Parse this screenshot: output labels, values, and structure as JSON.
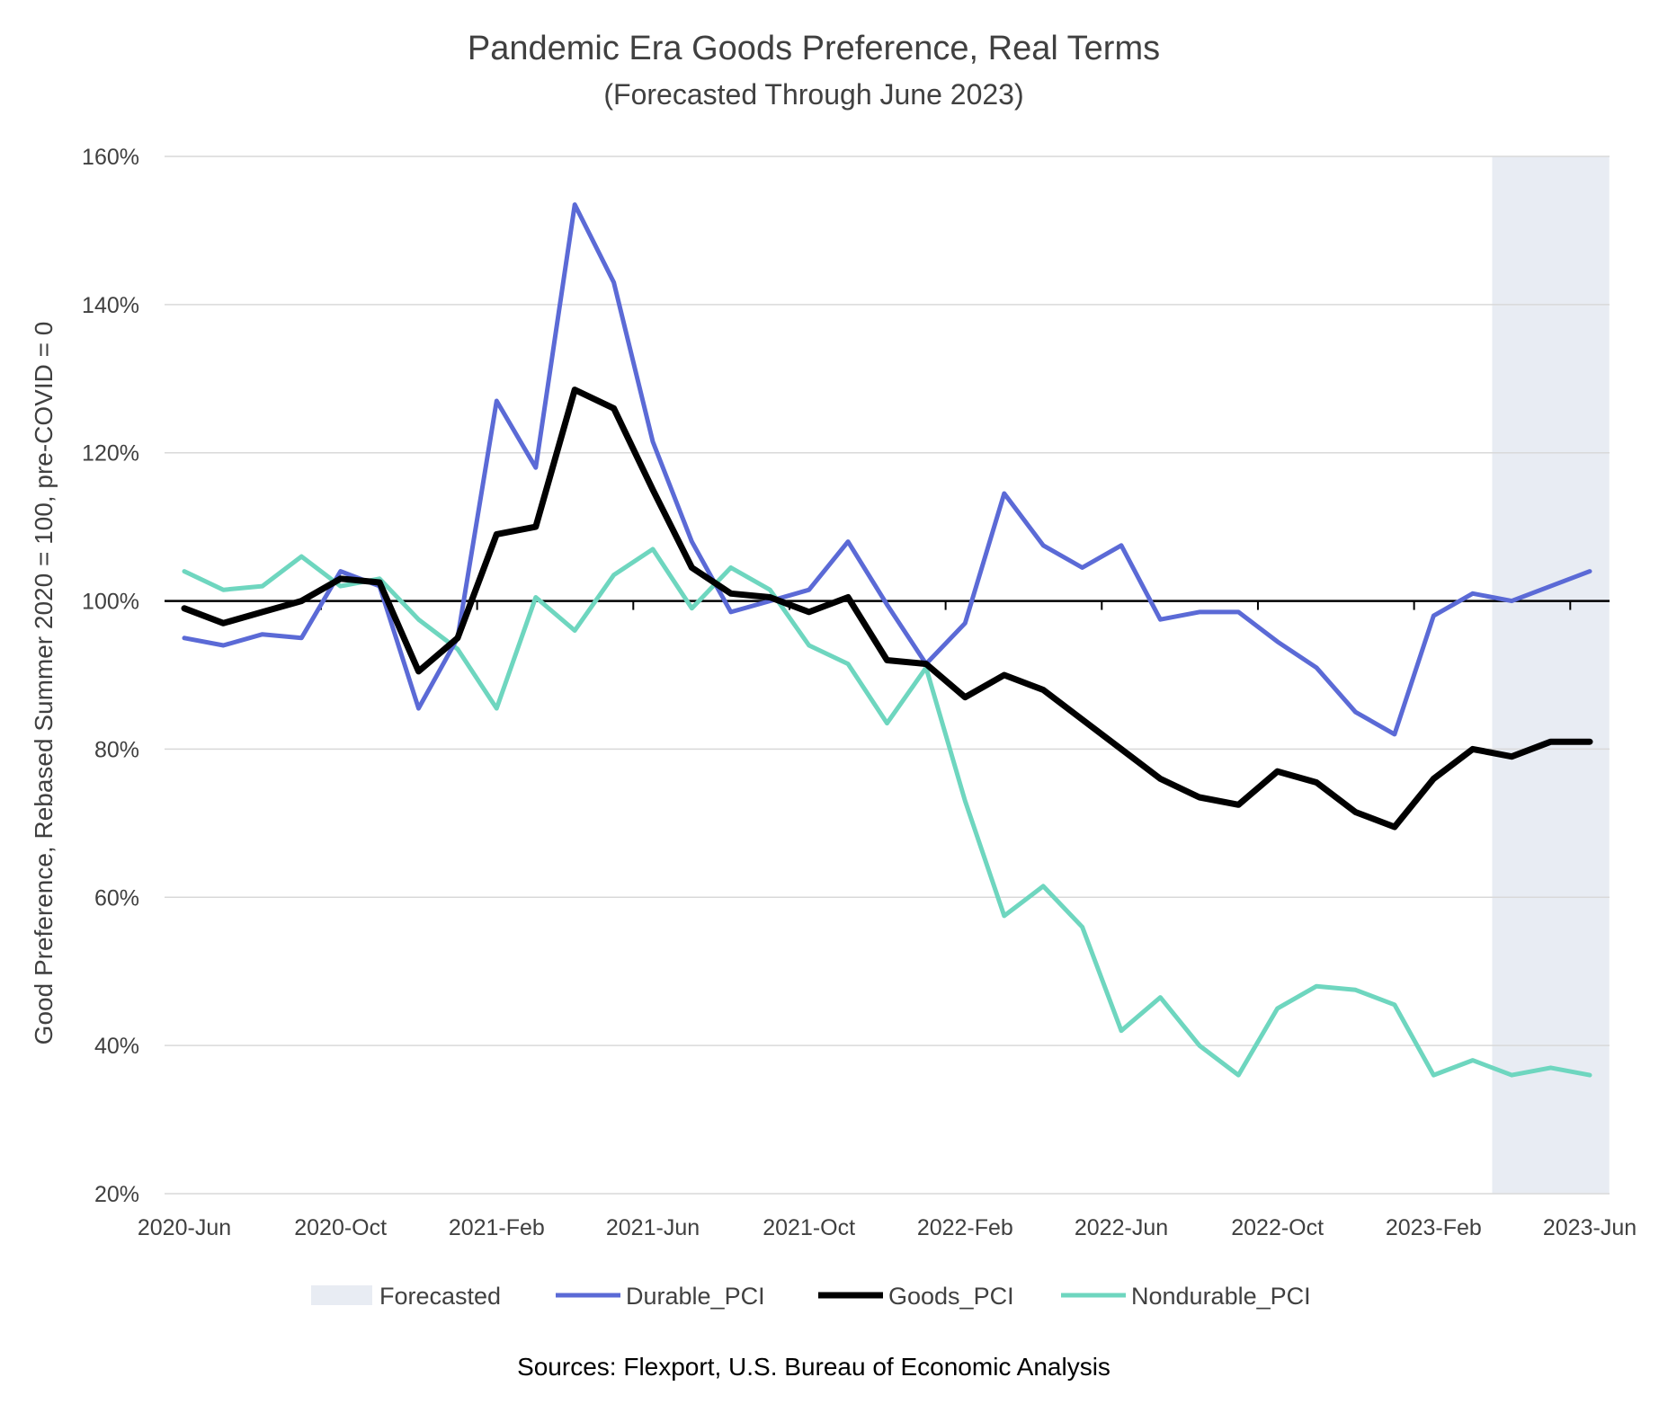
{
  "chart_data": {
    "type": "line",
    "title": "Pandemic Era Goods Preference, Real Terms",
    "subtitle": "(Forecasted Through June 2023)",
    "ylabel": "Good Preference, Rebased Summer 2020 = 100, pre-COVID = 0",
    "xlabel": "",
    "ylim": [
      20,
      160
    ],
    "yticks": [
      20,
      40,
      60,
      80,
      100,
      120,
      140,
      160
    ],
    "ytick_labels": [
      "20%",
      "40%",
      "60%",
      "80%",
      "100%",
      "120%",
      "140%",
      "160%"
    ],
    "x_tick_labels": [
      {
        "label": "2020-Jun",
        "index": 0
      },
      {
        "label": "2020-Oct",
        "index": 4
      },
      {
        "label": "2021-Feb",
        "index": 8
      },
      {
        "label": "2021-Jun",
        "index": 12
      },
      {
        "label": "2021-Oct",
        "index": 16
      },
      {
        "label": "2022-Feb",
        "index": 20
      },
      {
        "label": "2022-Jun",
        "index": 24
      },
      {
        "label": "2022-Oct",
        "index": 28
      },
      {
        "label": "2023-Feb",
        "index": 32
      },
      {
        "label": "2023-Jun",
        "index": 36
      }
    ],
    "x_start": "2020-Jun",
    "x_end": "2023-Jun",
    "period_count": 37,
    "reference_line": 100,
    "forecast_start_index": 33.5,
    "forecast_end_index": 36.5,
    "series": [
      {
        "name": "Durable_PCI",
        "color": "#5b6ad6",
        "values": [
          95,
          94,
          95.5,
          95,
          104,
          102,
          85.5,
          95,
          127,
          118,
          153.5,
          143,
          121.5,
          108,
          98.5,
          100,
          101.5,
          108,
          99.5,
          91.5,
          97,
          114.5,
          107.5,
          104.5,
          107.5,
          97.5,
          98.5,
          98.5,
          94.5,
          91,
          85,
          82,
          98,
          101,
          100,
          102,
          104
        ]
      },
      {
        "name": "Goods_PCI",
        "color": "#000000",
        "values": [
          99,
          97,
          98.5,
          100,
          103,
          102.5,
          90.5,
          95,
          109,
          110,
          128.5,
          126,
          115,
          104.5,
          101,
          100.5,
          98.5,
          100.5,
          92,
          91.5,
          87,
          90,
          88,
          84,
          80,
          76,
          73.5,
          72.5,
          77,
          75.5,
          71.5,
          69.5,
          76,
          80,
          79,
          81,
          81
        ]
      },
      {
        "name": "Nondurable_PCI",
        "color": "#6ed6bf",
        "values": [
          104,
          101.5,
          102,
          106,
          102,
          103,
          97.5,
          93.5,
          85.5,
          100.5,
          96,
          103.5,
          107,
          99,
          104.5,
          101.5,
          94,
          91.5,
          83.5,
          91,
          73,
          57.5,
          61.5,
          56,
          42,
          46.5,
          40,
          36,
          45,
          48,
          47.5,
          45.5,
          36,
          38,
          36,
          37,
          36
        ]
      }
    ],
    "legend": {
      "position": "bottom",
      "entries": [
        "Forecasted",
        "Durable_PCI",
        "Goods_PCI",
        "Nondurable_PCI"
      ],
      "forecast_color": "#e8ecf3"
    },
    "source_note": "Sources: Flexport, U.S. Bureau of Economic Analysis"
  }
}
